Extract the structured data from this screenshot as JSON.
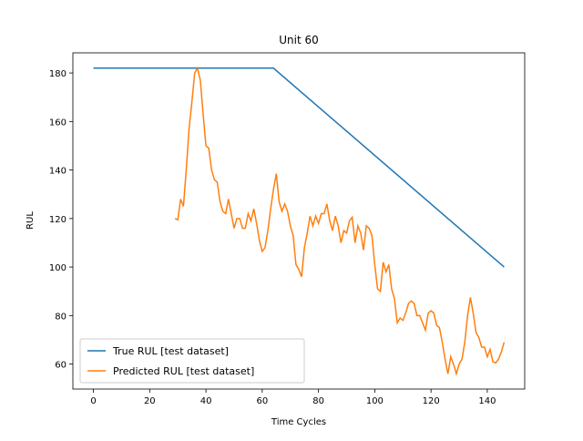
{
  "chart_data": {
    "type": "line",
    "title": "Unit 60",
    "x_label": "Time Cycles",
    "y_label": "RUL",
    "xlim": [
      -7.3,
      153.3
    ],
    "ylim": [
      49.7,
      188.3
    ],
    "xticks": [
      0,
      20,
      40,
      60,
      80,
      100,
      120,
      140
    ],
    "yticks": [
      60,
      80,
      100,
      120,
      140,
      160,
      180
    ],
    "legend": "lower left",
    "series": [
      {
        "name": "True RUL [test dataset]",
        "color": "#1f77b4",
        "x": [
          0,
          64,
          146
        ],
        "values": [
          182,
          182,
          100
        ]
      },
      {
        "name": "Predicted RUL [test dataset]",
        "color": "#ff7f0e",
        "x": [
          29,
          30,
          31,
          32,
          33,
          34,
          35,
          36,
          37,
          38,
          39,
          40,
          41,
          42,
          43,
          44,
          45,
          46,
          47,
          48,
          49,
          50,
          51,
          52,
          53,
          54,
          55,
          56,
          57,
          58,
          59,
          60,
          61,
          62,
          63,
          64,
          65,
          66,
          67,
          68,
          69,
          70,
          71,
          72,
          73,
          74,
          75,
          76,
          77,
          78,
          79,
          80,
          81,
          82,
          83,
          84,
          85,
          86,
          87,
          88,
          89,
          90,
          91,
          92,
          93,
          94,
          95,
          96,
          97,
          98,
          99,
          100,
          101,
          102,
          103,
          104,
          105,
          106,
          107,
          108,
          109,
          110,
          111,
          112,
          113,
          114,
          115,
          116,
          117,
          118,
          119,
          120,
          121,
          122,
          123,
          124,
          125,
          126,
          127,
          128,
          129,
          130,
          131,
          132,
          133,
          134,
          135,
          136,
          137,
          138,
          139,
          140,
          141,
          142,
          143,
          144,
          145,
          146
        ],
        "values": [
          120,
          119.5,
          128,
          125,
          140,
          157,
          168,
          180,
          182,
          177,
          163,
          150,
          149,
          140,
          136,
          135,
          127,
          123,
          122,
          128,
          122,
          116,
          120,
          120,
          116,
          116,
          122,
          119,
          124,
          118,
          111,
          106.5,
          108,
          115,
          124,
          132,
          138.5,
          127,
          123,
          126,
          123,
          117,
          113,
          101,
          99,
          96,
          108,
          114,
          121,
          117,
          121,
          118,
          122,
          122,
          126,
          119,
          115,
          121,
          117,
          110,
          115,
          114,
          119,
          120.5,
          110,
          117,
          114,
          107,
          117,
          116,
          113,
          101,
          91,
          90,
          102,
          98,
          101,
          91,
          87,
          77,
          79,
          78,
          81,
          85,
          86,
          85,
          80,
          80,
          77,
          74,
          81,
          82,
          81,
          76,
          75,
          69,
          62,
          56,
          63,
          60,
          56,
          60,
          62,
          69,
          80,
          87.5,
          81,
          73,
          71,
          67,
          67,
          63,
          66,
          61,
          60.5,
          62,
          65,
          69
        ]
      }
    ]
  }
}
